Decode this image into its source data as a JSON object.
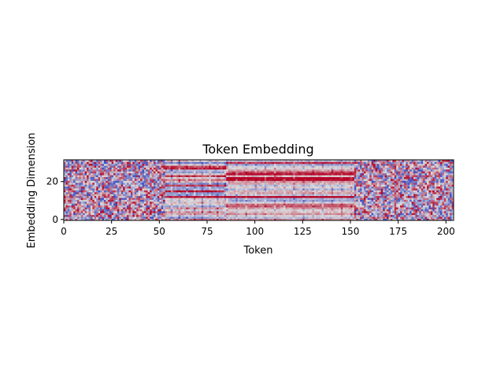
{
  "chart_data": {
    "type": "heatmap",
    "title": "Token Embedding",
    "xlabel": "Token",
    "ylabel": "Embedding Dimension",
    "x_ticks": [
      "0",
      "25",
      "50",
      "75",
      "100",
      "125",
      "150",
      "175",
      "200"
    ],
    "y_ticks": [
      "0",
      "20"
    ],
    "xlim": [
      0,
      204
    ],
    "ylim": [
      0,
      32
    ],
    "n_tokens": 204,
    "n_dims": 32,
    "colormap": "coolwarm",
    "colormap_endpoints": [
      "#3b4cc0",
      "#dddddd",
      "#b40426"
    ],
    "origin": "lower",
    "grid": false,
    "legend": "none",
    "segments": [
      {
        "start": 0,
        "end": 53,
        "pattern": "noisy"
      },
      {
        "start": 53,
        "end": 85,
        "pattern": "banded"
      },
      {
        "start": 85,
        "end": 152,
        "pattern": "banded-warm"
      },
      {
        "start": 152,
        "end": 204,
        "pattern": "noisy"
      }
    ]
  }
}
